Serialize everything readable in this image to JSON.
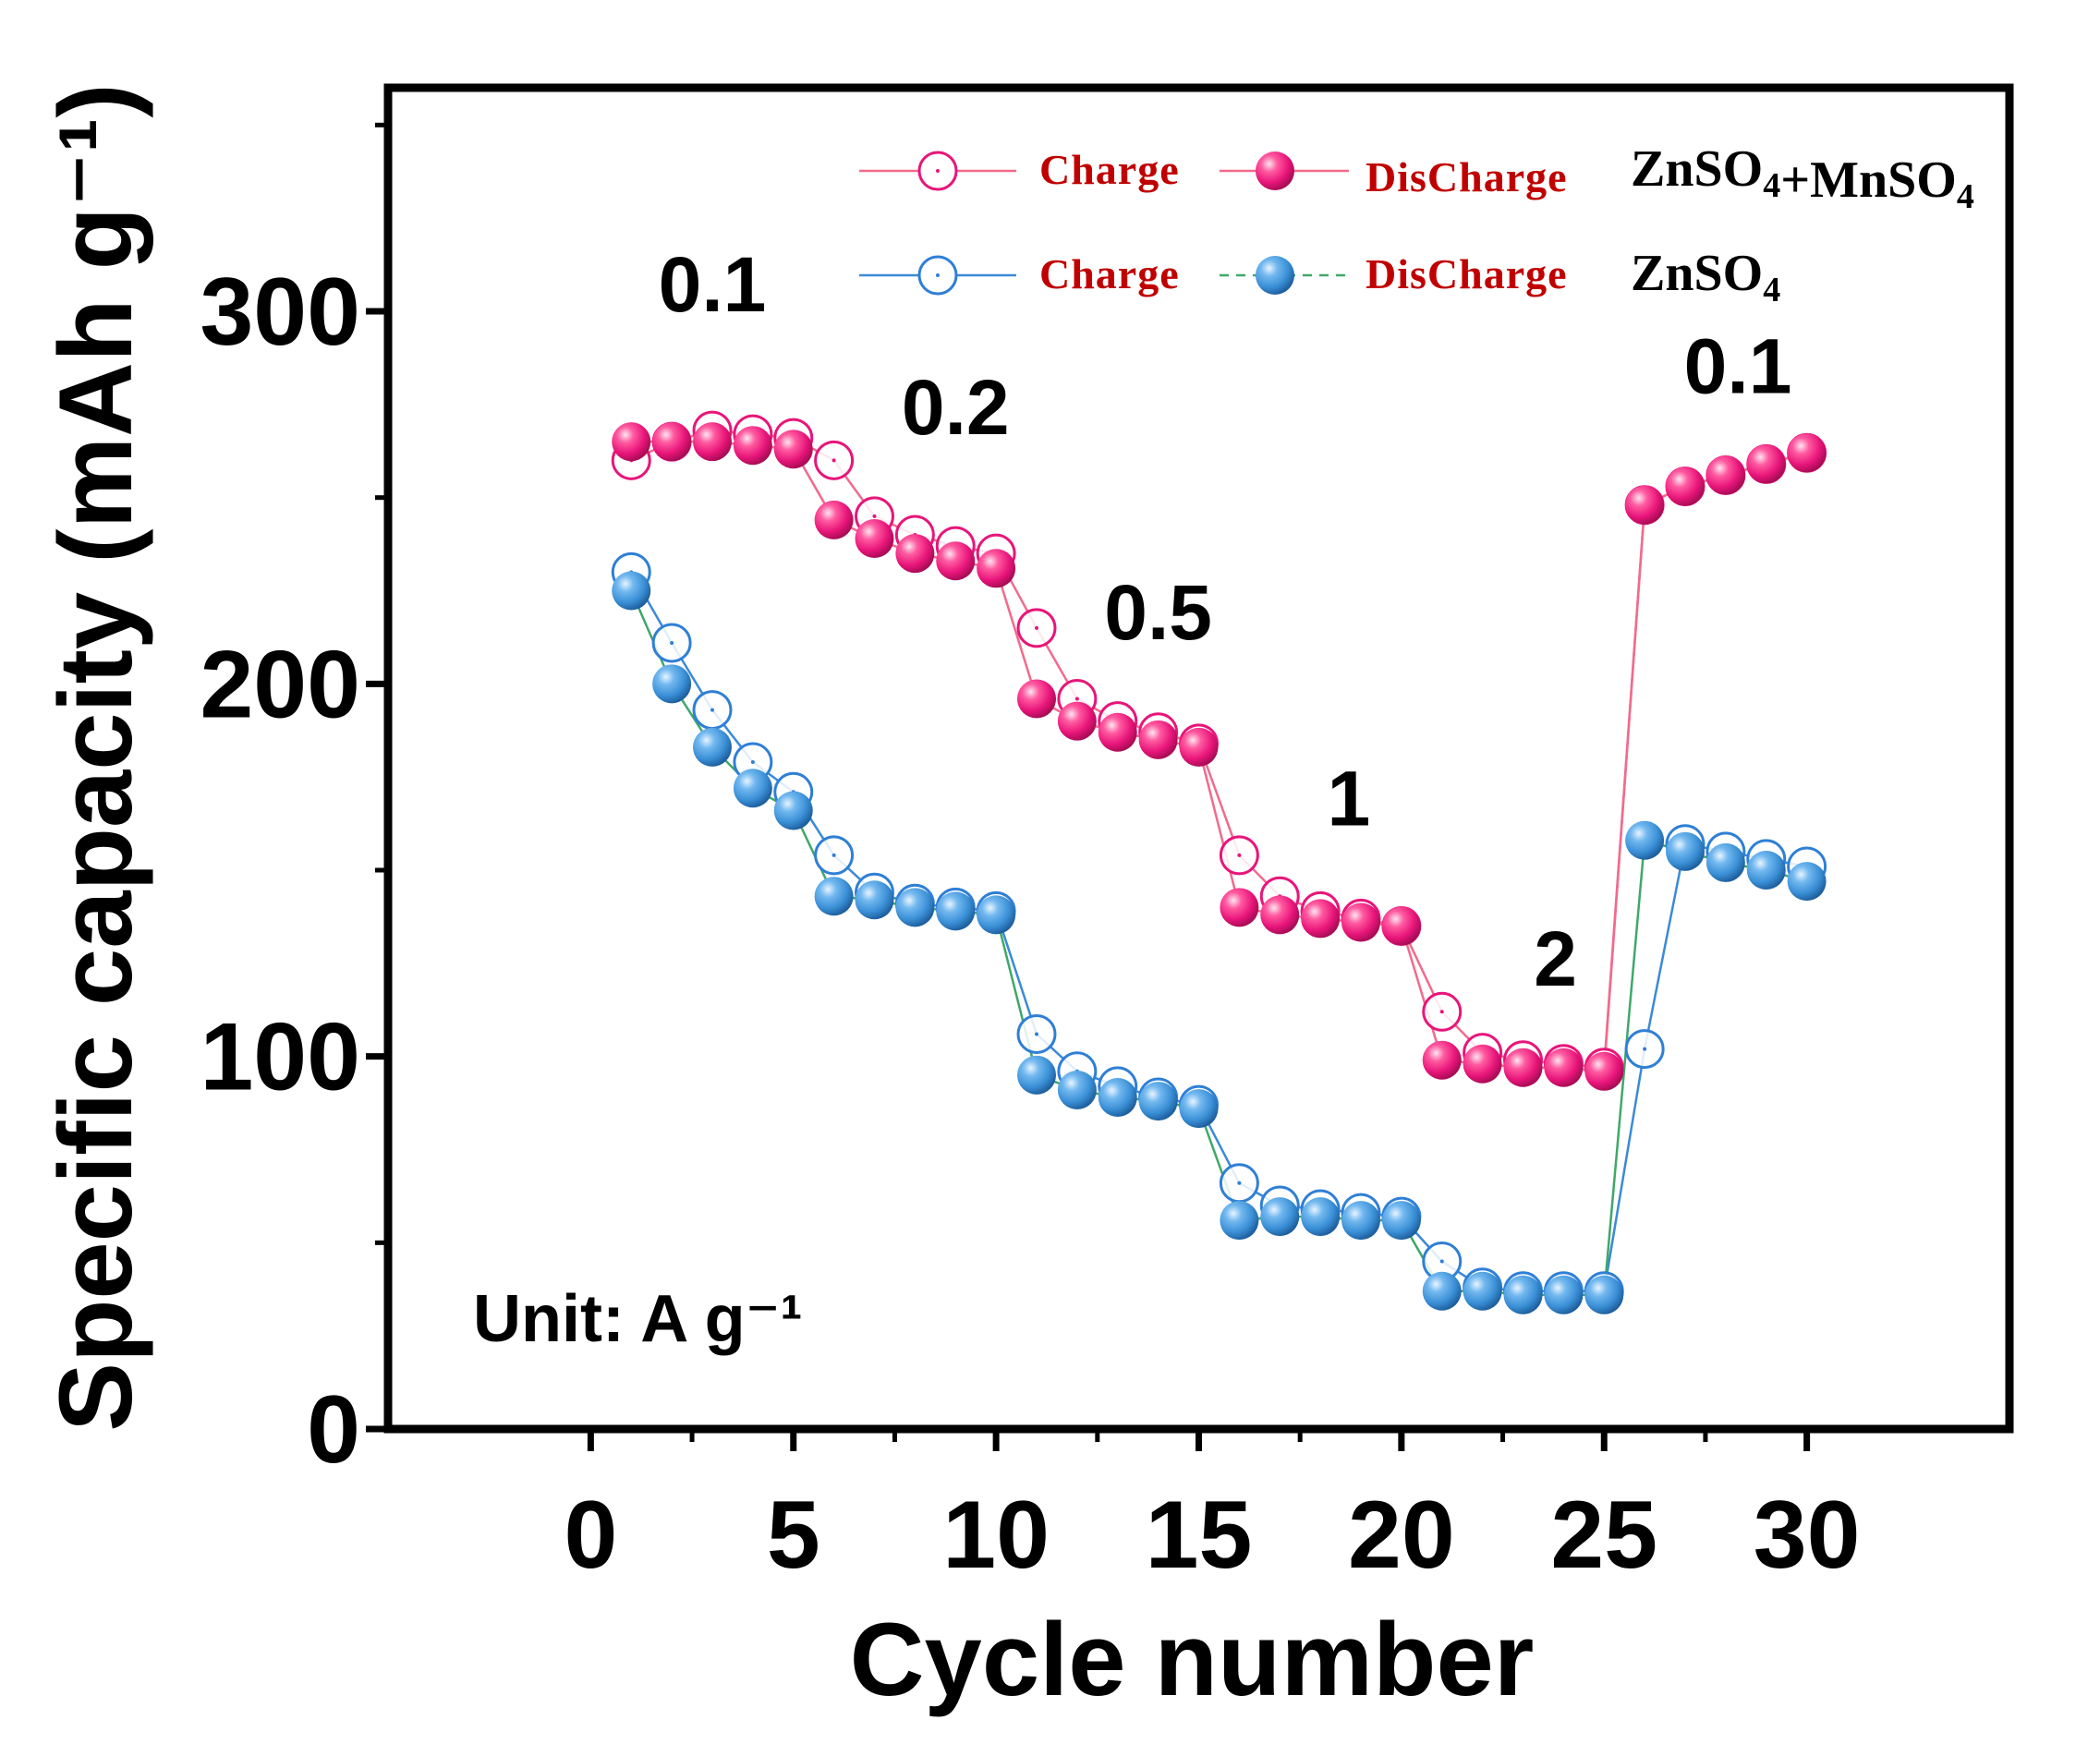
{
  "chart_data": {
    "type": "scatter",
    "title": "",
    "xlabel": "Cycle number",
    "ylabel": "Specific capacity (mAh g⁻¹)",
    "xlim": [
      -5,
      35
    ],
    "ylim": [
      0,
      360
    ],
    "x_ticks": [
      "0",
      "5",
      "10",
      "15",
      "20",
      "25",
      "30"
    ],
    "y_ticks": [
      "0",
      "100",
      "200",
      "300"
    ],
    "grid": false,
    "legend_position": "top-right",
    "x": [
      1,
      2,
      3,
      4,
      5,
      6,
      7,
      8,
      9,
      10,
      11,
      12,
      13,
      14,
      15,
      16,
      17,
      18,
      19,
      20,
      21,
      22,
      23,
      24,
      25,
      26,
      27,
      28,
      29,
      30
    ],
    "series": [
      {
        "name": "Charge",
        "electrolyte": "ZnSO4+MnSO4",
        "marker": "open-circle",
        "color": "#e8157a",
        "line_color": "#f26a8d",
        "values": [
          260,
          265,
          268,
          267,
          266,
          260,
          245,
          240,
          237,
          235,
          215,
          196,
          190,
          187,
          184,
          154,
          143,
          139,
          137,
          135,
          112,
          101,
          99,
          98,
          97,
          248,
          253,
          256,
          259,
          262
        ]
      },
      {
        "name": "DisCharge",
        "electrolyte": "ZnSO4+MnSO4",
        "marker": "filled-sphere",
        "color": "#e8157a",
        "line_color": "#f26a8d",
        "values": [
          265,
          265,
          265,
          264,
          263,
          244,
          239,
          235,
          233,
          231,
          196,
          190,
          187,
          185,
          183,
          140,
          138,
          137,
          136,
          135,
          99,
          98,
          97,
          97,
          96,
          248,
          253,
          256,
          259,
          262
        ]
      },
      {
        "name": "Charge",
        "electrolyte": "ZnSO4",
        "marker": "open-circle",
        "color": "#2f7fd6",
        "line_color": "#3a8ad8",
        "values": [
          230,
          211,
          193,
          179,
          171,
          154,
          144,
          141,
          140,
          139,
          106,
          96,
          92,
          89,
          87,
          66,
          60,
          59,
          58,
          57,
          45,
          38,
          37,
          37,
          37,
          102,
          157,
          155,
          153,
          151
        ]
      },
      {
        "name": "DisCharge",
        "electrolyte": "ZnSO4",
        "marker": "filled-sphere",
        "color": "#3a8fd6",
        "line_color": "#3fa86a",
        "values": [
          225,
          200,
          183,
          172,
          166,
          143,
          142,
          140,
          139,
          138,
          95,
          91,
          89,
          88,
          86,
          56,
          57,
          57,
          56,
          56,
          37,
          37,
          36,
          36,
          36,
          158,
          155,
          152,
          150,
          147
        ]
      }
    ],
    "annotations": [
      {
        "text": "0.1",
        "x": 3,
        "y": 300
      },
      {
        "text": "0.2",
        "x": 9,
        "y": 267
      },
      {
        "text": "0.5",
        "x": 14,
        "y": 212
      },
      {
        "text": "1",
        "x": 18.7,
        "y": 162
      },
      {
        "text": "2",
        "x": 23.8,
        "y": 119
      },
      {
        "text": "0.1",
        "x": 28.3,
        "y": 278
      }
    ],
    "unit_note": "Unit: A g⁻¹",
    "legend": {
      "entries": [
        {
          "label": "Charge",
          "series_index": 0
        },
        {
          "label": "DisCharge",
          "series_index": 1
        },
        {
          "label": "Charge",
          "series_index": 2
        },
        {
          "label": "DisCharge",
          "series_index": 3
        }
      ],
      "group_labels": [
        "ZnSO4+MnSO4",
        "ZnSO4"
      ],
      "text_color": "#c00000"
    }
  }
}
